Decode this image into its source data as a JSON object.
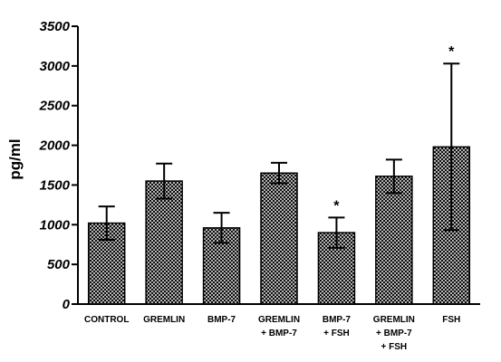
{
  "chart_data": {
    "type": "bar",
    "categories": [
      [
        "CONTROL"
      ],
      [
        "GREMLIN"
      ],
      [
        "BMP-7"
      ],
      [
        "GREMLIN",
        "+ BMP-7"
      ],
      [
        "BMP-7",
        "+ FSH"
      ],
      [
        "GREMLIN",
        "+ BMP-7",
        "+ FSH"
      ],
      [
        "FSH"
      ]
    ],
    "values": [
      1020,
      1550,
      960,
      1650,
      900,
      1610,
      1980
    ],
    "error": [
      210,
      220,
      190,
      130,
      190,
      210,
      1050
    ],
    "significance": [
      "",
      "",
      "",
      "",
      "*",
      "",
      "*"
    ],
    "title": "",
    "xlabel": "",
    "ylabel": "pg/ml",
    "ylim": [
      0,
      3500
    ],
    "yticks": [
      "0",
      "500",
      "1000",
      "1500",
      "2000",
      "2500",
      "3000",
      "3500"
    ],
    "grid": false,
    "bar_pattern": "crosshatch",
    "colors": {
      "bar_fill": "#8a8a8a",
      "bar_stroke": "#000000",
      "axis": "#000000"
    }
  }
}
